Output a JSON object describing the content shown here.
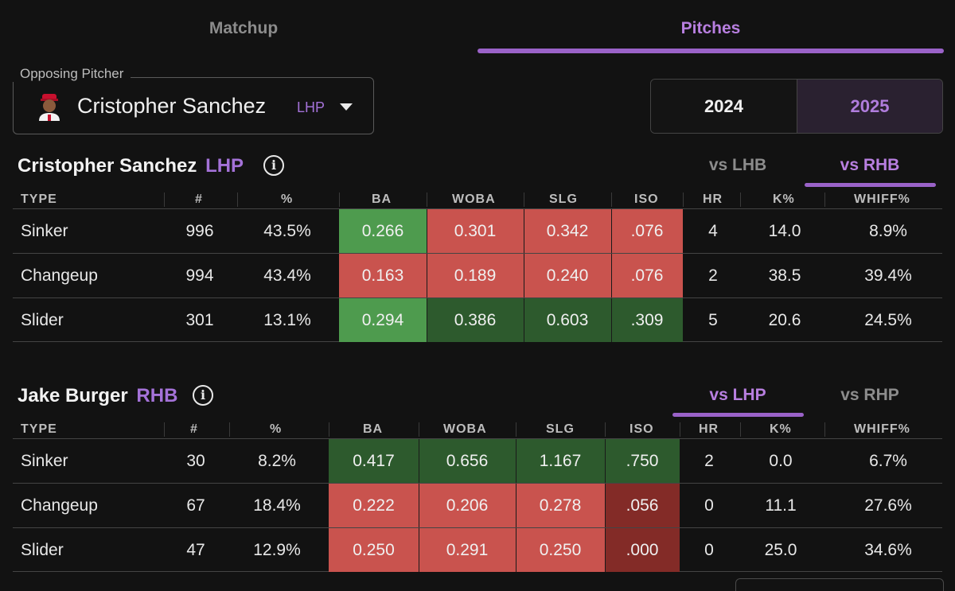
{
  "tabs": {
    "matchup": "Matchup",
    "pitches": "Pitches"
  },
  "pitcher_select": {
    "legend": "Opposing Pitcher",
    "name": "Cristopher Sanchez",
    "hand": "LHP"
  },
  "years": {
    "y2024": "2024",
    "y2025": "2025",
    "selected": "2025"
  },
  "pitcher_section": {
    "name": "Cristopher Sanchez",
    "hand": "LHP",
    "split_tabs": [
      "vs LHB",
      "vs RHB"
    ],
    "active_split": "vs RHB",
    "columns": [
      "TYPE",
      "#",
      "%",
      "BA",
      "WOBA",
      "SLG",
      "ISO",
      "HR",
      "K%",
      "WHIFF%"
    ],
    "rows": [
      {
        "type": "Sinker",
        "count": "996",
        "pct": "43.5%",
        "ba": "0.266",
        "woba": "0.301",
        "slg": "0.342",
        "iso": ".076",
        "hr": "4",
        "k": "14.0",
        "whiff": "8.9%"
      },
      {
        "type": "Changeup",
        "count": "994",
        "pct": "43.4%",
        "ba": "0.163",
        "woba": "0.189",
        "slg": "0.240",
        "iso": ".076",
        "hr": "2",
        "k": "38.5",
        "whiff": "39.4%"
      },
      {
        "type": "Slider",
        "count": "301",
        "pct": "13.1%",
        "ba": "0.294",
        "woba": "0.386",
        "slg": "0.603",
        "iso": ".309",
        "hr": "5",
        "k": "20.6",
        "whiff": "24.5%"
      }
    ]
  },
  "batter_section": {
    "name": "Jake Burger",
    "hand": "RHB",
    "split_tabs": [
      "vs LHP",
      "vs RHP"
    ],
    "active_split": "vs LHP",
    "columns": [
      "TYPE",
      "#",
      "%",
      "BA",
      "WOBA",
      "SLG",
      "ISO",
      "HR",
      "K%",
      "WHIFF%"
    ],
    "rows": [
      {
        "type": "Sinker",
        "count": "30",
        "pct": "8.2%",
        "ba": "0.417",
        "woba": "0.656",
        "slg": "1.167",
        "iso": ".750",
        "hr": "2",
        "k": "0.0",
        "whiff": "6.7%"
      },
      {
        "type": "Changeup",
        "count": "67",
        "pct": "18.4%",
        "ba": "0.222",
        "woba": "0.206",
        "slg": "0.278",
        "iso": ".056",
        "hr": "0",
        "k": "11.1",
        "whiff": "27.6%"
      },
      {
        "type": "Slider",
        "count": "47",
        "pct": "12.9%",
        "ba": "0.250",
        "woba": "0.291",
        "slg": "0.250",
        "iso": ".000",
        "hr": "0",
        "k": "25.0",
        "whiff": "34.6%"
      }
    ]
  },
  "colors": {
    "accent": "#b87fe0",
    "bad": "#c9534e",
    "good": "#4e9b4e",
    "great": "#2d5a2d",
    "worst": "#832b27"
  },
  "icons": {
    "info": "info-icon",
    "caret": "chevron-down-icon",
    "avatar": "player-avatar"
  },
  "info_glyph": "i"
}
